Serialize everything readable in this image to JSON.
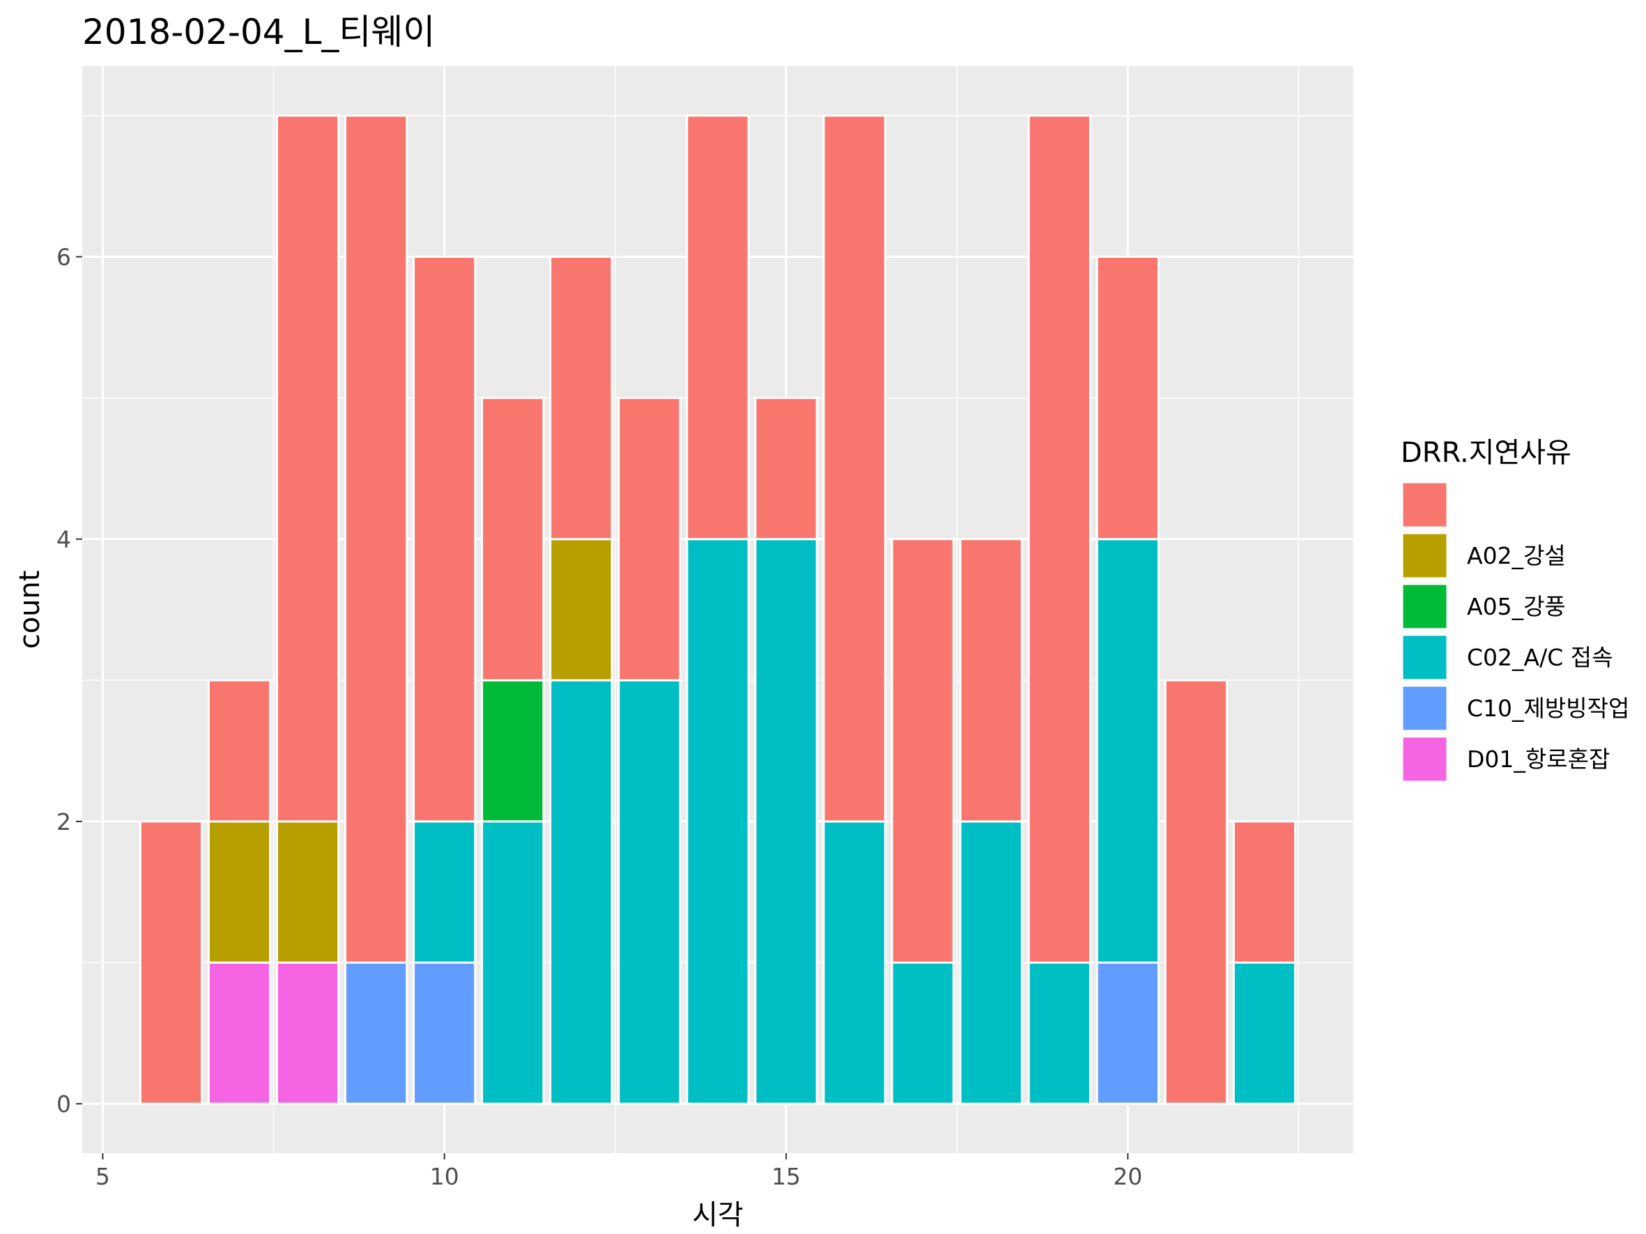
{
  "chart_data": {
    "type": "bar",
    "stacked": true,
    "title": "2018-02-04_L_티웨이",
    "xlabel": "시각",
    "ylabel": "count",
    "xlim": [
      4.7,
      23.3
    ],
    "ylim": [
      -0.35,
      7.35
    ],
    "x_ticks": [
      5,
      10,
      15,
      20
    ],
    "y_ticks": [
      0,
      2,
      4,
      6
    ],
    "grid": true,
    "legend_title": "DRR.지연사유",
    "legend_position": "right",
    "x": [
      6,
      7,
      8,
      9,
      10,
      11,
      12,
      13,
      14,
      15,
      16,
      17,
      18,
      19,
      20,
      21,
      22
    ],
    "series": [
      {
        "name": "D01_항로혼잡",
        "color": "#F564E3",
        "values": [
          0,
          1,
          1,
          0,
          0,
          0,
          0,
          0,
          0,
          0,
          0,
          0,
          0,
          0,
          0,
          0,
          0
        ]
      },
      {
        "name": "C10_제방빙작업",
        "color": "#619CFF",
        "values": [
          0,
          0,
          0,
          1,
          1,
          0,
          0,
          0,
          0,
          0,
          0,
          0,
          0,
          0,
          1,
          0,
          0
        ]
      },
      {
        "name": "C02_A/C 접속",
        "color": "#00BFC4",
        "values": [
          0,
          0,
          0,
          0,
          1,
          2,
          3,
          3,
          4,
          4,
          2,
          1,
          2,
          1,
          3,
          0,
          1
        ]
      },
      {
        "name": "A05_강풍",
        "color": "#00BA38",
        "values": [
          0,
          0,
          0,
          0,
          0,
          1,
          0,
          0,
          0,
          0,
          0,
          0,
          0,
          0,
          0,
          0,
          0
        ]
      },
      {
        "name": "A02_강설",
        "color": "#B79F00",
        "values": [
          0,
          1,
          1,
          0,
          0,
          0,
          1,
          0,
          0,
          0,
          0,
          0,
          0,
          0,
          0,
          0,
          0
        ]
      },
      {
        "name": "",
        "color": "#F8766D",
        "values": [
          2,
          1,
          5,
          6,
          4,
          2,
          2,
          2,
          3,
          1,
          5,
          3,
          2,
          6,
          2,
          3,
          1
        ]
      }
    ],
    "legend_order": [
      "",
      "A02_강설",
      "A05_강풍",
      "C02_A/C 접속",
      "C10_제방빙작업",
      "D01_항로혼잡"
    ]
  }
}
